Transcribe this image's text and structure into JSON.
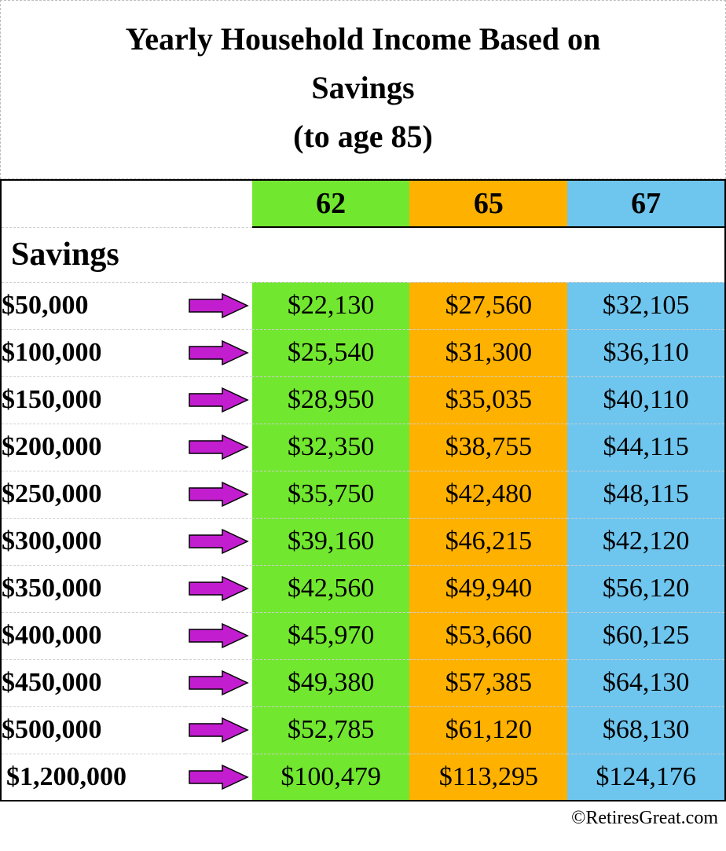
{
  "title": {
    "line1": "Yearly Household Income Based on",
    "line2": "Savings",
    "line3": "(to age 85)",
    "fontsize": 40,
    "color": "#000000"
  },
  "table": {
    "type": "table",
    "savings_header_label": "Savings",
    "age_columns": [
      {
        "label": "62",
        "bg": "#72e72f"
      },
      {
        "label": "65",
        "bg": "#ffb100"
      },
      {
        "label": "67",
        "bg": "#6ec5ee"
      }
    ],
    "arrow": {
      "fill": "#c21ecf",
      "stroke": "#000000",
      "width": 78,
      "height": 34
    },
    "savings_col_bg": "#ffffff",
    "arrow_col_bg": "#ffffff",
    "border_color": "#000000",
    "row_divider_color": "#cfcfcf",
    "cell_fontsize": 34,
    "header_fontsize": 38,
    "savings_header_fontsize": 42,
    "rows": [
      {
        "savings": "$50,000",
        "v62": "$22,130",
        "v65": "$27,560",
        "v67": "$32,105"
      },
      {
        "savings": "$100,000",
        "v62": "$25,540",
        "v65": "$31,300",
        "v67": "$36,110"
      },
      {
        "savings": "$150,000",
        "v62": "$28,950",
        "v65": "$35,035",
        "v67": "$40,110"
      },
      {
        "savings": "$200,000",
        "v62": "$32,350",
        "v65": "$38,755",
        "v67": "$44,115"
      },
      {
        "savings": "$250,000",
        "v62": "$35,750",
        "v65": "$42,480",
        "v67": "$48,115"
      },
      {
        "savings": "$300,000",
        "v62": "$39,160",
        "v65": "$46,215",
        "v67": "$42,120"
      },
      {
        "savings": "$350,000",
        "v62": "$42,560",
        "v65": "$49,940",
        "v67": "$56,120"
      },
      {
        "savings": "$400,000",
        "v62": "$45,970",
        "v65": "$53,660",
        "v67": "$60,125"
      },
      {
        "savings": "$450,000",
        "v62": "$49,380",
        "v65": "$57,385",
        "v67": "$64,130"
      },
      {
        "savings": "$500,000",
        "v62": "$52,785",
        "v65": "$61,120",
        "v67": "$68,130"
      },
      {
        "savings": "$1,200,000",
        "v62": "$100,479",
        "v65": "$113,295",
        "v67": "$124,176"
      }
    ]
  },
  "credit": "©RetiresGreat.com"
}
